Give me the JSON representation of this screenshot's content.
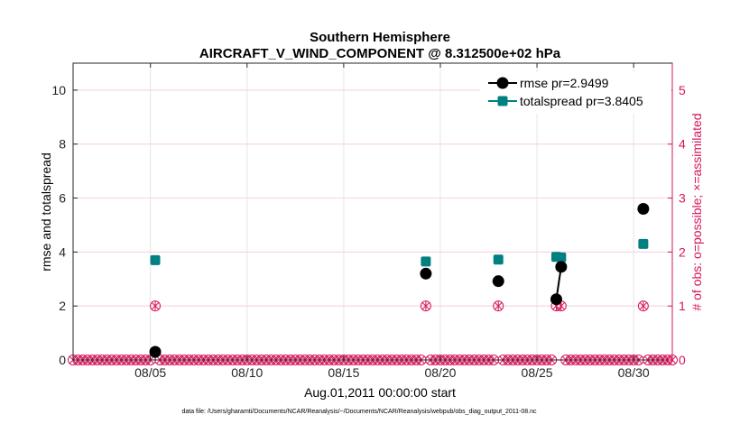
{
  "chart_data": {
    "type": "line",
    "title": "Southern Hemisphere",
    "subtitle": "AIRCRAFT_V_WIND_COMPONENT @ 8.312500e+02 hPa",
    "xlabel": "Aug.01,2011 00:00:00 start",
    "ylabel": "rmse and totalspread",
    "ylabel_right": "# of obs: o=possible; ×=assimilated",
    "xlim": [
      1.0,
      32.0
    ],
    "ylim": [
      0,
      11
    ],
    "ylim_right": [
      0,
      5.5
    ],
    "x_ticks": [
      {
        "value": 5,
        "label": "08/05"
      },
      {
        "value": 10,
        "label": "08/10"
      },
      {
        "value": 15,
        "label": "08/15"
      },
      {
        "value": 20,
        "label": "08/20"
      },
      {
        "value": 25,
        "label": "08/25"
      },
      {
        "value": 30,
        "label": "08/30"
      }
    ],
    "y_ticks": [
      0,
      2,
      4,
      6,
      8,
      10
    ],
    "y_ticks_right": [
      0,
      1,
      2,
      3,
      4,
      5
    ],
    "grid": true,
    "colors": {
      "rmse": "#000000",
      "totalspread": "#008080",
      "obs": "#d6145c",
      "grid": "#e6e6e6"
    },
    "series": [
      {
        "name": "rmse",
        "legend": "rmse pr=2.9499",
        "segments": [
          [
            [
              5.25,
              0.3
            ]
          ],
          [
            [
              19.25,
              3.2
            ]
          ],
          [
            [
              23.0,
              2.92
            ]
          ],
          [
            [
              26.0,
              2.25
            ],
            [
              26.25,
              3.45
            ]
          ],
          [
            [
              30.5,
              5.6
            ]
          ]
        ]
      },
      {
        "name": "totalspread",
        "legend": "totalspread pr=3.8405",
        "segments": [
          [
            [
              5.25,
              3.7
            ]
          ],
          [
            [
              19.25,
              3.65
            ]
          ],
          [
            [
              23.0,
              3.72
            ]
          ],
          [
            [
              26.0,
              3.82
            ],
            [
              26.25,
              3.8
            ]
          ],
          [
            [
              30.5,
              4.3
            ]
          ]
        ]
      }
    ],
    "obs_counts": {
      "start": 1.0,
      "step": 0.25,
      "count": 125,
      "nonzero": [
        {
          "x": 5.25,
          "possible": 1,
          "assimilated": 1
        },
        {
          "x": 19.25,
          "possible": 1,
          "assimilated": 1
        },
        {
          "x": 23.0,
          "possible": 1,
          "assimilated": 1
        },
        {
          "x": 26.0,
          "possible": 1,
          "assimilated": 1
        },
        {
          "x": 26.25,
          "possible": 1,
          "assimilated": 1
        },
        {
          "x": 30.5,
          "possible": 1,
          "assimilated": 1
        }
      ]
    }
  },
  "footnote": "data file: /Users/gharamti/Documents/NCAR/Reanalysis/~/Documents/NCAR/Reanalysis/webpub/obs_diag_output_2011-08.nc"
}
